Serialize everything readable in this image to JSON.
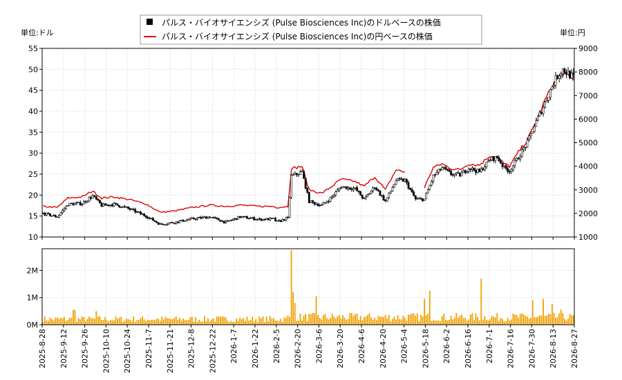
{
  "chart_data": {
    "type": "candlestick",
    "legend": {
      "placement": "top-center",
      "entries": [
        {
          "label": "パルス・バイオサイエンシズ (Pulse Biosciences Inc)のドルベースの株価",
          "marker": "black-square",
          "color": "#000000"
        },
        {
          "label": "パルス・バイオサイエンシズ (Pulse Biosciences Inc)の円ベースの株価",
          "marker": "red-line",
          "color": "#dd0000"
        }
      ]
    },
    "unit_left": "単位:ドル",
    "unit_right": "単位:円",
    "y_left": {
      "min": 10,
      "max": 55,
      "ticks": [
        10,
        15,
        20,
        25,
        30,
        35,
        40,
        45,
        50,
        55
      ]
    },
    "y_right": {
      "min": 1000,
      "max": 9000,
      "ticks": [
        1000,
        2000,
        3000,
        4000,
        5000,
        6000,
        7000,
        8000,
        9000
      ]
    },
    "volume_axis": {
      "min": 0,
      "max": 2800000,
      "ticks": [
        {
          "value": 0,
          "label": "0M"
        },
        {
          "value": 1000000,
          "label": "1M"
        },
        {
          "value": 2000000,
          "label": "2M"
        }
      ]
    },
    "x_tick_labels": [
      "2025-8-28",
      "2025-9-12",
      "2025-9-26",
      "2025-10-10",
      "2025-10-24",
      "2025-11-7",
      "2025-11-21",
      "2025-12-8",
      "2025-12-22",
      "2026-1-7",
      "2026-1-22",
      "2026-2-5",
      "2026-2-20",
      "2026-3-6",
      "2026-3-20",
      "2026-4-6",
      "2026-4-20",
      "2026-5-4",
      "2026-5-18",
      "2026-6-2",
      "2026-6-16",
      "2026-7-1",
      "2026-7-16",
      "2026-7-30",
      "2026-8-13",
      "2026-8-27"
    ],
    "usd_close_keypoints": [
      [
        0,
        15.6
      ],
      [
        8,
        14.8
      ],
      [
        14,
        17.8
      ],
      [
        22,
        18.0
      ],
      [
        28,
        19.8
      ],
      [
        33,
        17.5
      ],
      [
        40,
        17.8
      ],
      [
        48,
        16.8
      ],
      [
        58,
        15.0
      ],
      [
        66,
        13.0
      ],
      [
        74,
        13.5
      ],
      [
        84,
        14.3
      ],
      [
        94,
        14.8
      ],
      [
        103,
        13.5
      ],
      [
        111,
        14.8
      ],
      [
        122,
        14.2
      ],
      [
        130,
        14.3
      ],
      [
        132,
        13.6
      ],
      [
        138,
        14.5
      ],
      [
        140,
        24.5
      ],
      [
        146,
        25.5
      ],
      [
        150,
        18.5
      ],
      [
        157,
        17.5
      ],
      [
        162,
        19.2
      ],
      [
        168,
        22.0
      ],
      [
        176,
        21.5
      ],
      [
        181,
        19.0
      ],
      [
        187,
        22.0
      ],
      [
        193,
        18.5
      ],
      [
        199,
        23.5
      ],
      [
        204,
        23.5
      ],
      [
        210,
        19.0
      ],
      [
        215,
        19.0
      ],
      [
        220,
        24.5
      ],
      [
        225,
        26.5
      ],
      [
        230,
        25.0
      ],
      [
        235,
        24.8
      ],
      [
        240,
        26.5
      ],
      [
        246,
        25.5
      ],
      [
        252,
        28.5
      ],
      [
        256,
        29.0
      ],
      [
        260,
        26.5
      ],
      [
        263,
        25.8
      ],
      [
        268,
        29.0
      ],
      [
        273,
        32.5
      ],
      [
        278,
        37.5
      ],
      [
        283,
        42.0
      ],
      [
        287,
        46.0
      ],
      [
        290,
        48.5
      ],
      [
        293,
        50.0
      ],
      [
        296,
        49.0
      ],
      [
        299,
        48.0
      ]
    ],
    "jpy_close_keypoints": [
      [
        0,
        2300
      ],
      [
        8,
        2250
      ],
      [
        14,
        2650
      ],
      [
        22,
        2700
      ],
      [
        28,
        2950
      ],
      [
        33,
        2650
      ],
      [
        40,
        2700
      ],
      [
        48,
        2600
      ],
      [
        58,
        2400
      ],
      [
        66,
        2050
      ],
      [
        74,
        2100
      ],
      [
        84,
        2250
      ],
      [
        94,
        2350
      ],
      [
        103,
        2300
      ],
      [
        111,
        2350
      ],
      [
        122,
        2300
      ],
      [
        130,
        2300
      ],
      [
        132,
        2250
      ],
      [
        138,
        2300
      ],
      [
        140,
        3900
      ],
      [
        146,
        4000
      ],
      [
        150,
        3000
      ],
      [
        157,
        2850
      ],
      [
        162,
        3100
      ],
      [
        168,
        3450
      ],
      [
        176,
        3350
      ],
      [
        181,
        3150
      ],
      [
        187,
        3550
      ],
      [
        193,
        3000
      ],
      [
        199,
        3850
      ],
      [
        204,
        3750
      ],
      [
        210,
        3150
      ],
      [
        215,
        3100
      ],
      [
        220,
        3950
      ],
      [
        225,
        4100
      ],
      [
        230,
        3900
      ],
      [
        235,
        3850
      ],
      [
        240,
        4100
      ],
      [
        246,
        4050
      ],
      [
        252,
        4450
      ],
      [
        256,
        4400
      ],
      [
        260,
        4100
      ],
      [
        263,
        4000
      ],
      [
        268,
        4600
      ],
      [
        273,
        5100
      ],
      [
        278,
        5900
      ],
      [
        283,
        6800
      ],
      [
        287,
        7400
      ],
      [
        290,
        7700
      ],
      [
        293,
        7950
      ],
      [
        296,
        7800
      ],
      [
        299,
        7700
      ]
    ],
    "jpy_series_gaps": [
      [
        205,
        214
      ]
    ],
    "volume_spikes": [
      {
        "day": 140,
        "value": 2750000
      },
      {
        "day": 141,
        "value": 1200000
      },
      {
        "day": 142,
        "value": 800000
      },
      {
        "day": 154,
        "value": 1050000
      },
      {
        "day": 215,
        "value": 950000
      },
      {
        "day": 218,
        "value": 1250000
      },
      {
        "day": 247,
        "value": 1700000
      },
      {
        "day": 287,
        "value": 750000
      },
      {
        "day": 282,
        "value": 950000
      },
      {
        "day": 30,
        "value": 500000
      },
      {
        "day": 18,
        "value": 550000
      },
      {
        "day": 17,
        "value": 550000
      },
      {
        "day": 276,
        "value": 900000
      },
      {
        "day": 292,
        "value": 560000
      }
    ],
    "volume_baseline": 180000,
    "colors": {
      "candle": "#000000",
      "jpy_line": "#dd0000",
      "volume": "#f0a000",
      "grid": "#e0e0e0",
      "axis": "#000000"
    },
    "grid": true
  }
}
